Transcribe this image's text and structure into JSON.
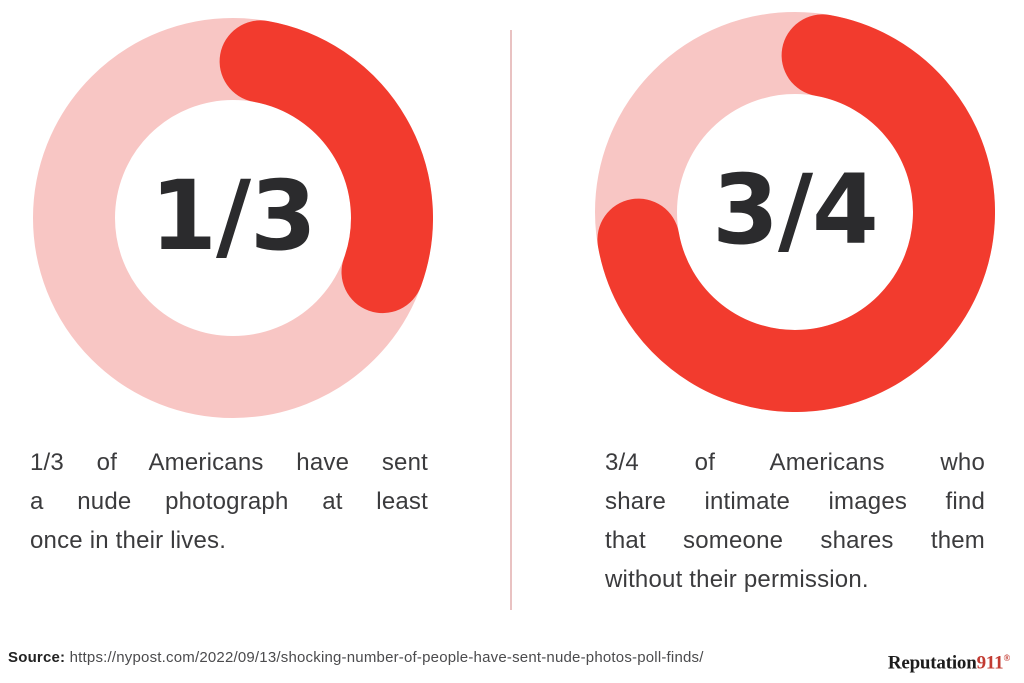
{
  "page": {
    "background": "#ffffff"
  },
  "charts": [
    {
      "center_label": "1/3",
      "caption_lines": [
        "1/3 of Americans have sent",
        "a nude photograph at least",
        "once in their lives."
      ]
    },
    {
      "center_label": "3/4",
      "caption_lines": [
        "3/4 of Americans who",
        "share intimate images find",
        "that someone shares them",
        "without their permission."
      ]
    }
  ],
  "chart_data": [
    {
      "type": "pie",
      "subtype": "donut-progress",
      "center_label": "1/3",
      "fraction_filled": 0.333,
      "values_pct": [
        33.3,
        66.7
      ],
      "slice_colors": [
        "#F23B2E",
        "#F8C6C4"
      ],
      "start_angle": "12 o'clock",
      "direction": "clockwise",
      "legend": "none",
      "caption": "1/3 of Americans have sent a nude photograph at least once in their lives."
    },
    {
      "type": "pie",
      "subtype": "donut-progress",
      "center_label": "3/4",
      "fraction_filled": 0.75,
      "values_pct": [
        75,
        25
      ],
      "slice_colors": [
        "#F23B2E",
        "#F8C6C4"
      ],
      "start_angle": "12 o'clock",
      "direction": "clockwise",
      "legend": "none",
      "caption": "3/4 of Americans who share intimate images find that someone shares them without their permission."
    }
  ],
  "footer": {
    "source_label": "Source:",
    "source_url": "https://nypost.com/2022/09/13/shocking-number-of-people-have-sent-nude-photos-poll-finds/",
    "brand": {
      "text_dark": "Reputation",
      "text_red": "911",
      "registered_mark": "®"
    }
  },
  "colors": {
    "ring_track_pink": "#F8C6C4",
    "ring_fill_red": "#F23B2E",
    "number_text": "#2B2B2D",
    "caption_text": "#3B3B3D",
    "divider_pink": "#E9C2C2",
    "source_text": "#4B4B4D",
    "source_label_text": "#222222",
    "brand_dark": "#1C1C1C",
    "brand_red": "#C23B32"
  }
}
